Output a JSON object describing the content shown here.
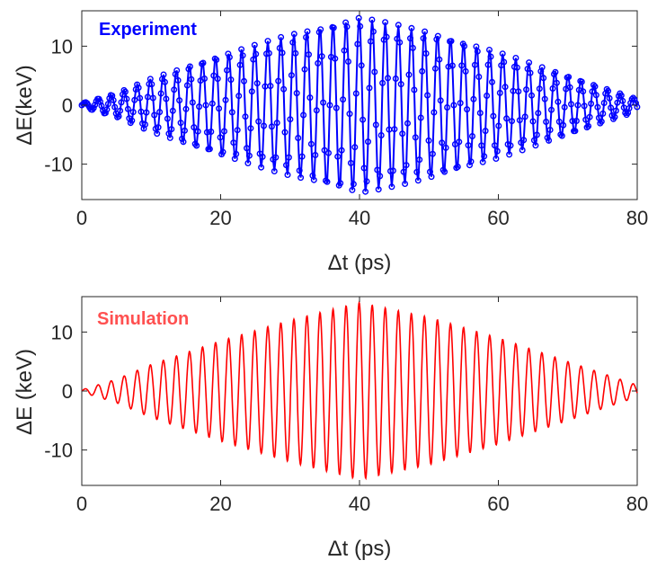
{
  "chart_data": [
    {
      "type": "line",
      "title": "Experiment",
      "annotation": "Experiment",
      "xlabel": "Δt (ps)",
      "ylabel": "ΔE(keV)",
      "xlim": [
        0,
        80
      ],
      "ylim": [
        -16,
        16
      ],
      "xticks": [
        "0",
        "20",
        "40",
        "60",
        "80"
      ],
      "yticks": [
        "10",
        "0",
        "-10"
      ],
      "color": "#0000ff",
      "markers": "circle",
      "period_ps": 1.88,
      "sample_step_ps": 0.19,
      "envelope": [
        [
          0,
          0.3
        ],
        [
          5,
          2
        ],
        [
          10,
          4.5
        ],
        [
          20,
          8.5
        ],
        [
          30,
          12
        ],
        [
          40,
          15
        ],
        [
          50,
          12.5
        ],
        [
          60,
          9
        ],
        [
          70,
          5
        ],
        [
          80,
          1
        ]
      ]
    },
    {
      "type": "line",
      "title": "Simulation",
      "annotation": "Simulation",
      "xlabel": "Δt (ps)",
      "ylabel": "ΔE (keV)",
      "xlim": [
        0,
        80
      ],
      "ylim": [
        -16,
        16
      ],
      "xticks": [
        "0",
        "20",
        "40",
        "60",
        "80"
      ],
      "yticks": [
        "10",
        "0",
        "-10"
      ],
      "color": "#ff0000",
      "markers": "none",
      "period_ps": 1.88,
      "sample_step_ps": 0.05,
      "envelope": [
        [
          0,
          0.2
        ],
        [
          5,
          2
        ],
        [
          10,
          4.5
        ],
        [
          20,
          8.5
        ],
        [
          30,
          12
        ],
        [
          40,
          15
        ],
        [
          50,
          12.5
        ],
        [
          60,
          9
        ],
        [
          70,
          5
        ],
        [
          80,
          1
        ]
      ]
    }
  ]
}
